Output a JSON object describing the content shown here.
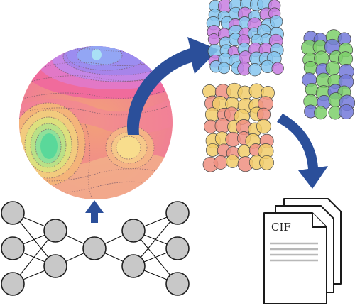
{
  "document": {
    "label": "CIF"
  },
  "colors": {
    "arrow": "#2b4f9a",
    "node_fill": "#c8c8c8",
    "crystal_purple": "#c77de0",
    "crystal_blue": "#86c6ee",
    "crystal_green": "#7ccf6a",
    "crystal_indigo": "#7379d9",
    "crystal_yellow": "#f1cc6a",
    "crystal_salmon": "#ef8f80"
  },
  "icons": [
    "neural-network-autoencoder",
    "latent-energy-landscape",
    "generation-arrow",
    "crystal-structures",
    "cif-document-stack"
  ]
}
